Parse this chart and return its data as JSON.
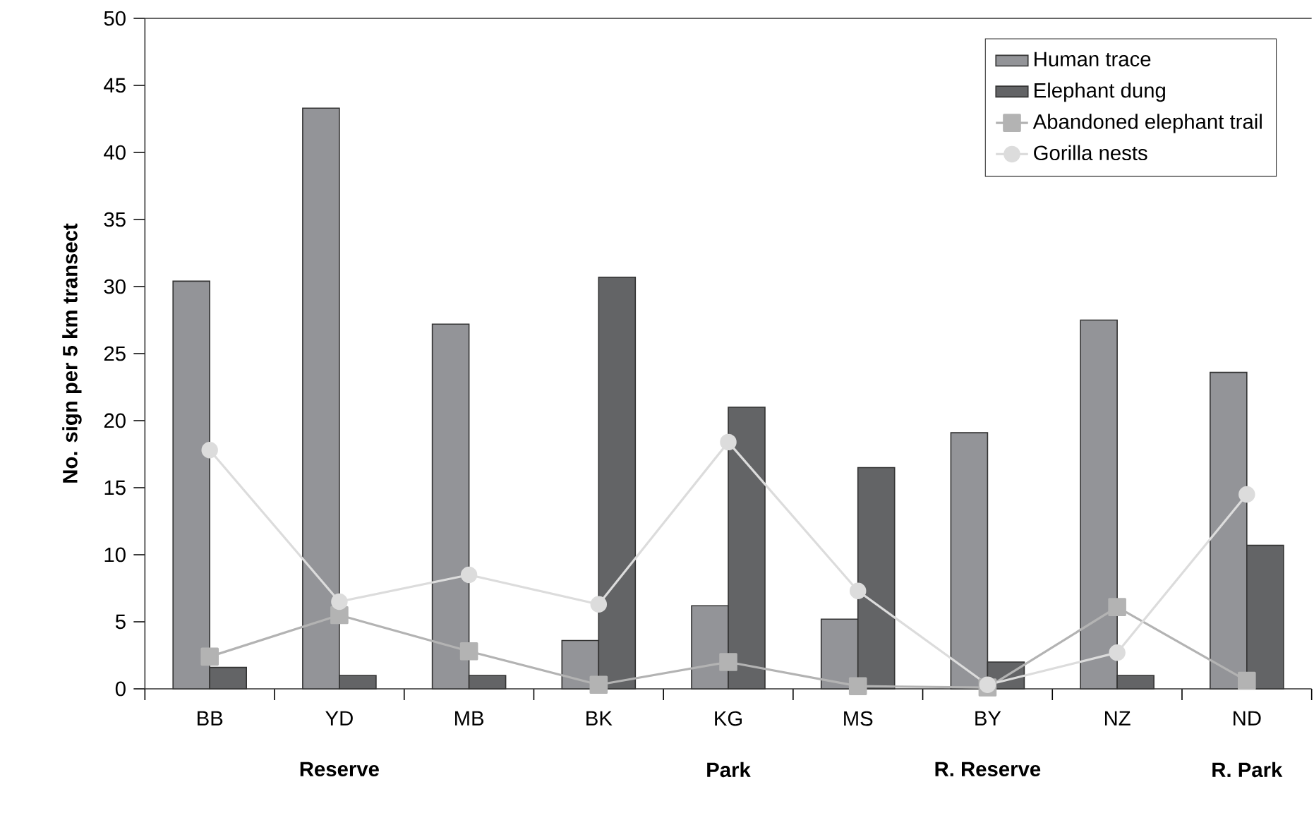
{
  "chart_data": {
    "type": "bar",
    "ylabel": "No. sign per 5 km transect",
    "categories": [
      "BB",
      "YD",
      "MB",
      "BK",
      "KG",
      "MS",
      "BY",
      "NZ",
      "ND"
    ],
    "series": [
      {
        "name": "Human trace",
        "color": "#939498",
        "values": [
          30.4,
          43.3,
          27.2,
          3.6,
          6.2,
          5.2,
          19.1,
          27.5,
          23.6
        ]
      },
      {
        "name": "Elephant dung",
        "color": "#636466",
        "values": [
          1.6,
          1.0,
          1.0,
          30.7,
          21.0,
          16.5,
          2.0,
          1.0,
          10.7
        ]
      },
      {
        "name": "Abandoned elephant trail",
        "type": "line",
        "marker": "square",
        "color": "#b3b3b3",
        "values": [
          2.4,
          5.5,
          2.8,
          0.3,
          2.0,
          0.2,
          0.1,
          6.1,
          0.6
        ]
      },
      {
        "name": "Gorilla nests",
        "type": "line",
        "marker": "circle",
        "color": "#dcdcdc",
        "values": [
          17.8,
          6.5,
          8.5,
          6.3,
          18.4,
          7.3,
          0.3,
          2.7,
          14.5
        ]
      }
    ],
    "ylim": [
      0,
      50
    ],
    "yticks": [
      0,
      5,
      10,
      15,
      20,
      25,
      30,
      35,
      40,
      45,
      50
    ],
    "legend": "top right",
    "annotations": [
      "Reserve",
      "Park",
      "R. Reserve",
      "R. Park"
    ]
  }
}
